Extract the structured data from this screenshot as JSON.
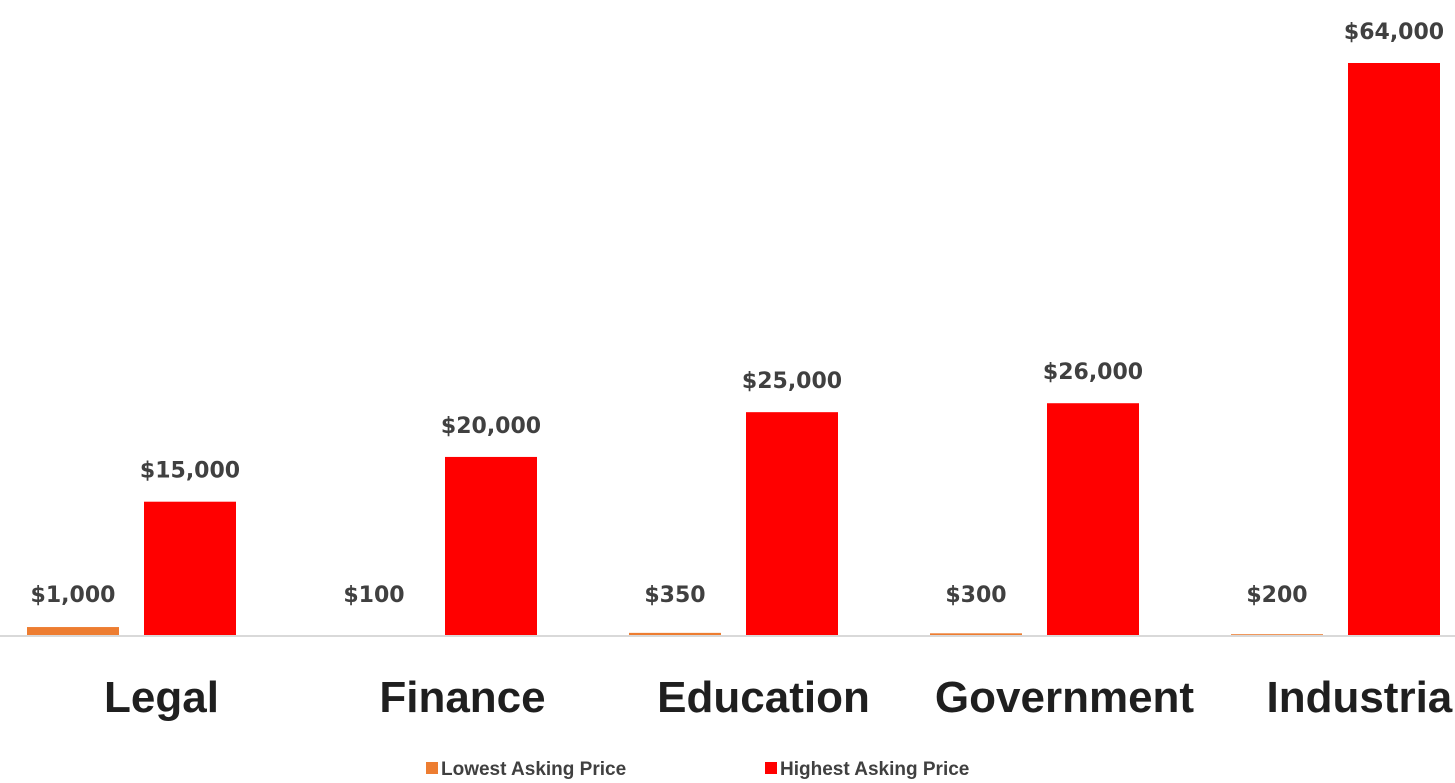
{
  "chart_data": {
    "type": "bar",
    "categories": [
      "Legal",
      "Finance",
      "Education",
      "Government",
      "Industrial"
    ],
    "series": [
      {
        "name": "Lowest Asking Price",
        "color": "#ed7d31",
        "values": [
          1000,
          100,
          350,
          300,
          200
        ],
        "labels": [
          "$1,000",
          "$100",
          "$350",
          "$300",
          "$200"
        ]
      },
      {
        "name": "Highest Asking Price",
        "color": "#ff0000",
        "values": [
          15000,
          20000,
          25000,
          26000,
          64000
        ],
        "labels": [
          "$15,000",
          "$20,000",
          "$25,000",
          "$26,000",
          "$64,000"
        ]
      }
    ],
    "ylim": [
      0,
      64000
    ],
    "grid": false,
    "legend_position": "bottom",
    "axis_color": "#d9d9d9"
  }
}
